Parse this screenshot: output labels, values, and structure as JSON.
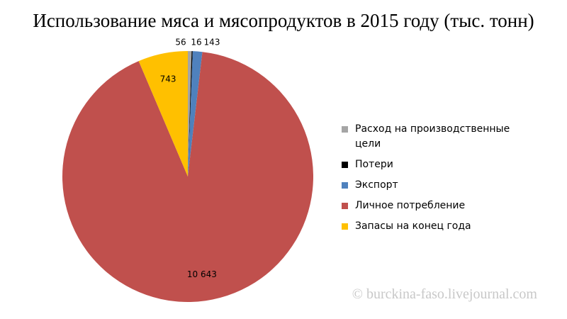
{
  "chart_data": {
    "type": "pie",
    "title": "Использование мяса и мясопродуктов в 2015 году (тыс. тонн)",
    "categories": [
      "Расход на производственные цели",
      "Потери",
      "Экспорт",
      "Личное потребление",
      "Запасы на конец года"
    ],
    "values": [
      56,
      16,
      143,
      10643,
      743
    ],
    "value_labels": [
      "56",
      "16",
      "143",
      "10 643",
      "743"
    ],
    "colors": [
      "#a5a5a5",
      "#000000",
      "#4f81bd",
      "#c0504d",
      "#ffc000"
    ],
    "legend": "right",
    "watermark": "© burckina-faso.livejournal.com"
  }
}
